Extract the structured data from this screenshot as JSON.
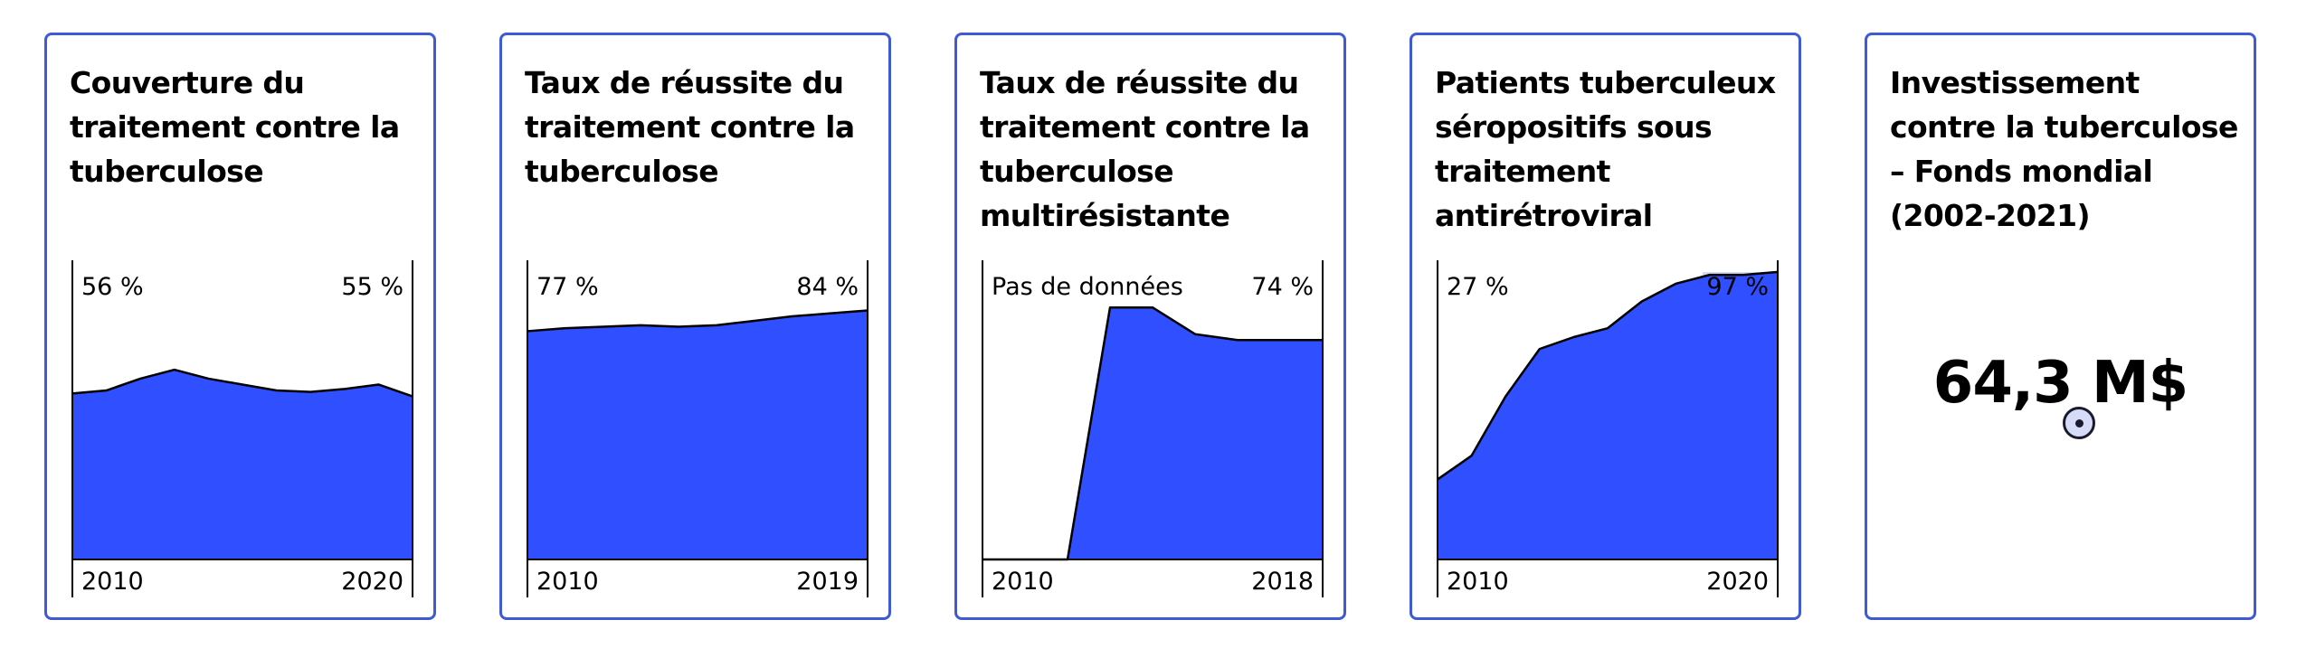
{
  "colors": {
    "fill": "#304ffe",
    "border": "#3e5bd4",
    "highlight": "#d5daf7"
  },
  "cards": [
    {
      "title": "Couverture du traitement contre la tuberculose",
      "start_label": "56 %",
      "end_label": "55 %",
      "x_start": "2010",
      "x_end": "2020"
    },
    {
      "title": "Taux de réussite du traitement contre la tuberculose",
      "start_label": "77 %",
      "end_label": "84 %",
      "x_start": "2010",
      "x_end": "2019"
    },
    {
      "title": "Taux de réussite du traitement contre la tuberculose multirésistante",
      "start_label": "Pas de données",
      "end_label": "74 %",
      "x_start": "2010",
      "x_end": "2018"
    },
    {
      "title": "Patients tuberculeux séropositifs sous traitement antirétroviral",
      "start_label": "27 %",
      "end_label": "97 %",
      "x_start": "2010",
      "x_end": "2020"
    },
    {
      "title": "Investissement contre la tuberculose – Fonds mondial (2002-2021)",
      "value": "64,3 M$"
    }
  ],
  "chart_data": [
    {
      "type": "area",
      "x": [
        2010,
        2011,
        2012,
        2013,
        2014,
        2015,
        2016,
        2017,
        2018,
        2019,
        2020
      ],
      "values": [
        56,
        57,
        61,
        64,
        61,
        59,
        57,
        56.5,
        57.5,
        59,
        55
      ],
      "ylim": [
        0,
        100
      ]
    },
    {
      "type": "area",
      "x": [
        2010,
        2011,
        2012,
        2013,
        2014,
        2015,
        2016,
        2017,
        2018,
        2019
      ],
      "values": [
        77,
        78,
        78.5,
        79,
        78.5,
        79,
        80.5,
        82,
        83,
        84
      ],
      "ylim": [
        0,
        100
      ]
    },
    {
      "type": "area",
      "x": [
        2010,
        2011,
        2012,
        2013,
        2014,
        2015,
        2016,
        2017,
        2018
      ],
      "values": [
        null,
        null,
        null,
        85,
        85,
        76,
        74,
        74,
        74
      ],
      "ylim": [
        0,
        100
      ]
    },
    {
      "type": "area",
      "x": [
        2010,
        2011,
        2012,
        2013,
        2014,
        2015,
        2016,
        2017,
        2018,
        2019,
        2020
      ],
      "values": [
        27,
        35,
        55,
        71,
        75,
        78,
        87,
        93,
        96,
        96,
        97
      ],
      "ylim": [
        0,
        100
      ]
    }
  ]
}
